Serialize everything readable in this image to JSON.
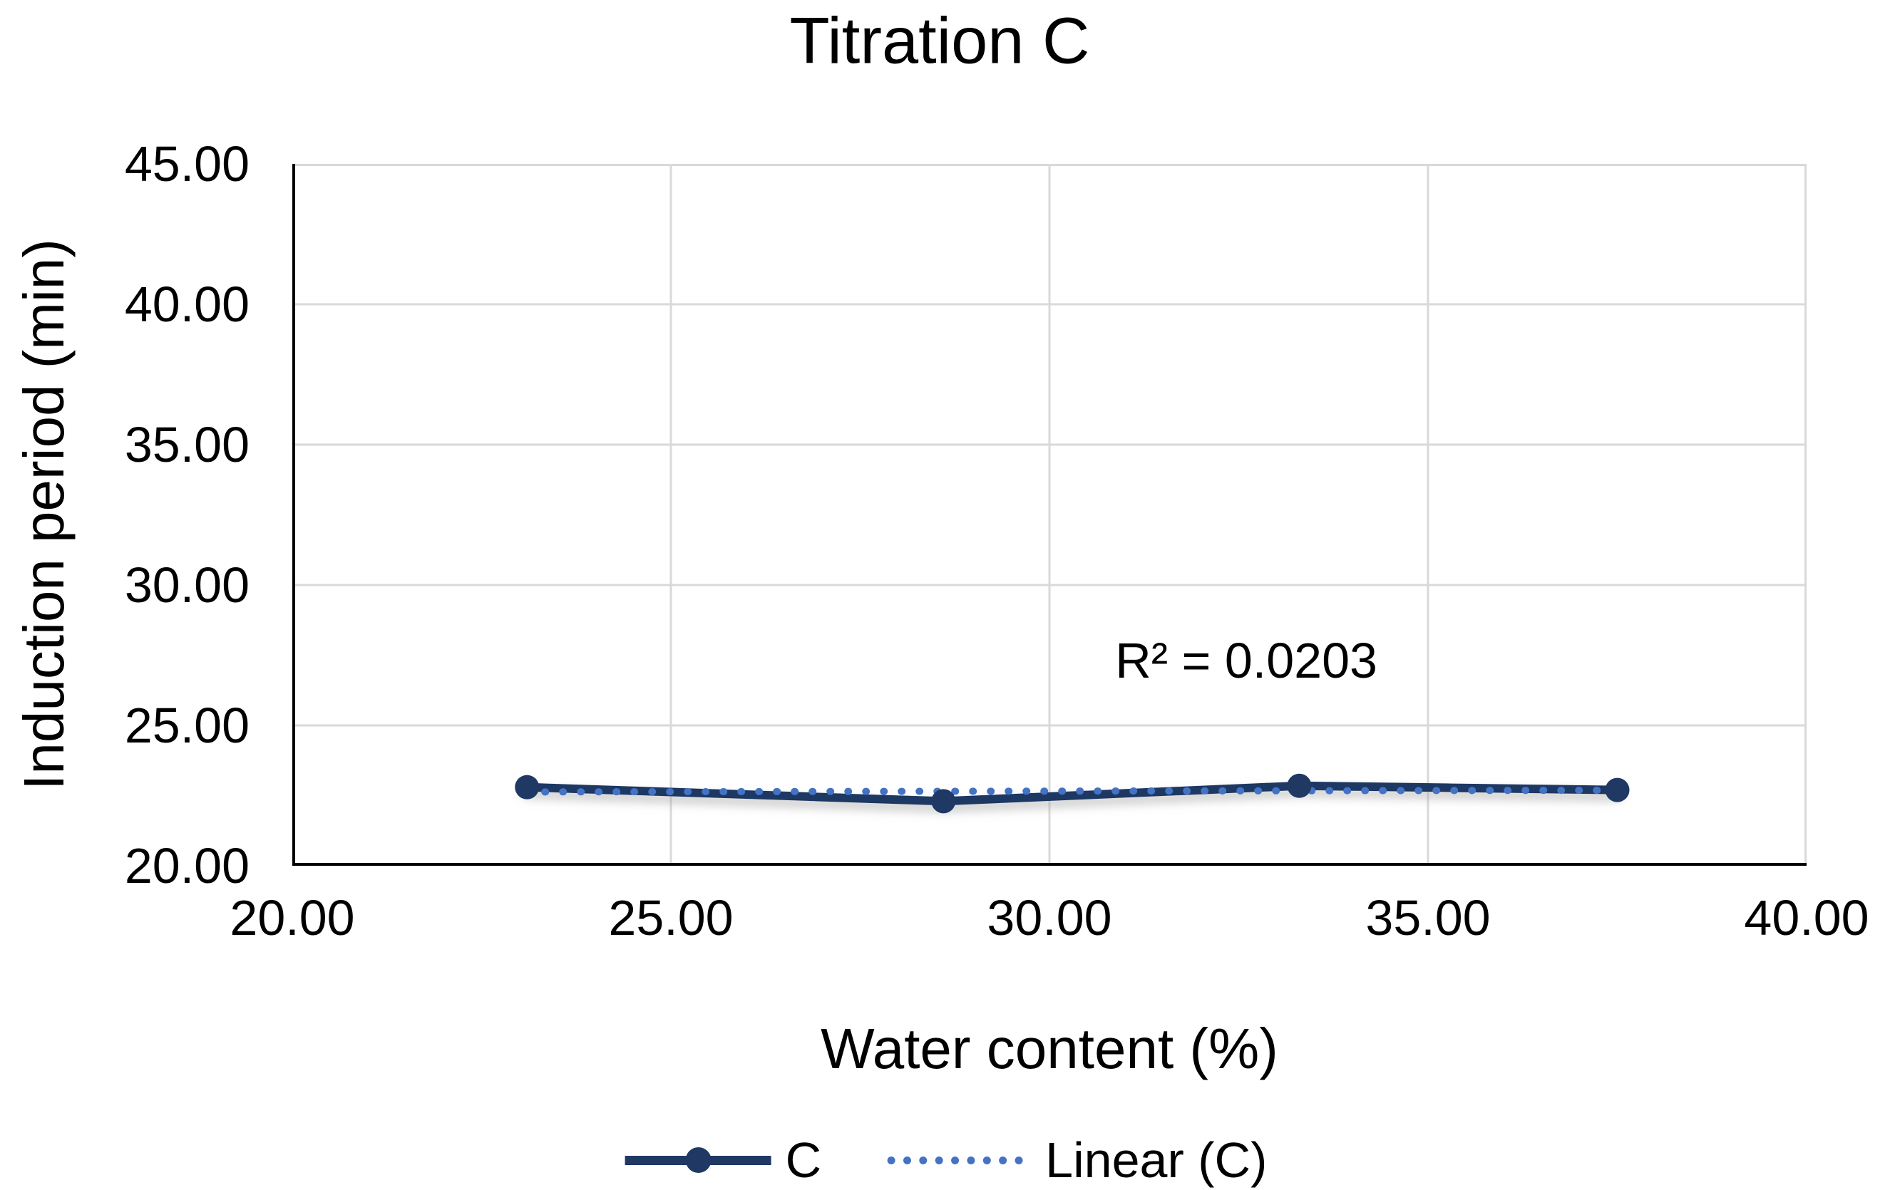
{
  "title": "Titration C",
  "colors": {
    "series": "#1F3864",
    "trendline": "#4472C4",
    "gridline": "#D9D9D9",
    "axis": "#000000",
    "text": "#000000"
  },
  "axes": {
    "x": {
      "label": "Water content (%)",
      "min": 20,
      "max": 40,
      "ticks": [
        {
          "value": 20,
          "label": "20.00"
        },
        {
          "value": 25,
          "label": "25.00"
        },
        {
          "value": 30,
          "label": "30.00"
        },
        {
          "value": 35,
          "label": "35.00"
        },
        {
          "value": 40,
          "label": "40.00"
        }
      ]
    },
    "y": {
      "label": "Induction period (min)",
      "min": 20,
      "max": 45,
      "ticks": [
        {
          "value": 45,
          "label": "45.00"
        },
        {
          "value": 40,
          "label": "40.00"
        },
        {
          "value": 35,
          "label": "35.00"
        },
        {
          "value": 30,
          "label": "30.00"
        },
        {
          "value": 25,
          "label": "25.00"
        },
        {
          "value": 20,
          "label": "20.00"
        }
      ]
    }
  },
  "annotation": {
    "text": "R² = 0.0203"
  },
  "legend": {
    "items": [
      {
        "label": "C",
        "style": "solid-line-with-marker"
      },
      {
        "label": "Linear (C)",
        "style": "dotted-line"
      }
    ]
  },
  "chart_data": {
    "type": "line",
    "title": "Titration C",
    "xlabel": "Water content (%)",
    "ylabel": "Induction period (min)",
    "xlim": [
      20,
      40
    ],
    "ylim": [
      20,
      45
    ],
    "grid": true,
    "legend_position": "bottom",
    "series": [
      {
        "name": "C",
        "style": "solid-with-round-markers",
        "x": [
          23.1,
          28.6,
          33.3,
          37.5
        ],
        "y": [
          22.8,
          22.3,
          22.85,
          22.7
        ]
      },
      {
        "name": "Linear (C)",
        "style": "dotted-trendline",
        "x": [
          23.1,
          37.5
        ],
        "y": [
          22.63,
          22.69
        ],
        "r_squared": 0.0203
      }
    ],
    "annotations": [
      {
        "text": "R² = 0.0203",
        "x": 32.6,
        "y": 27.3
      }
    ]
  }
}
